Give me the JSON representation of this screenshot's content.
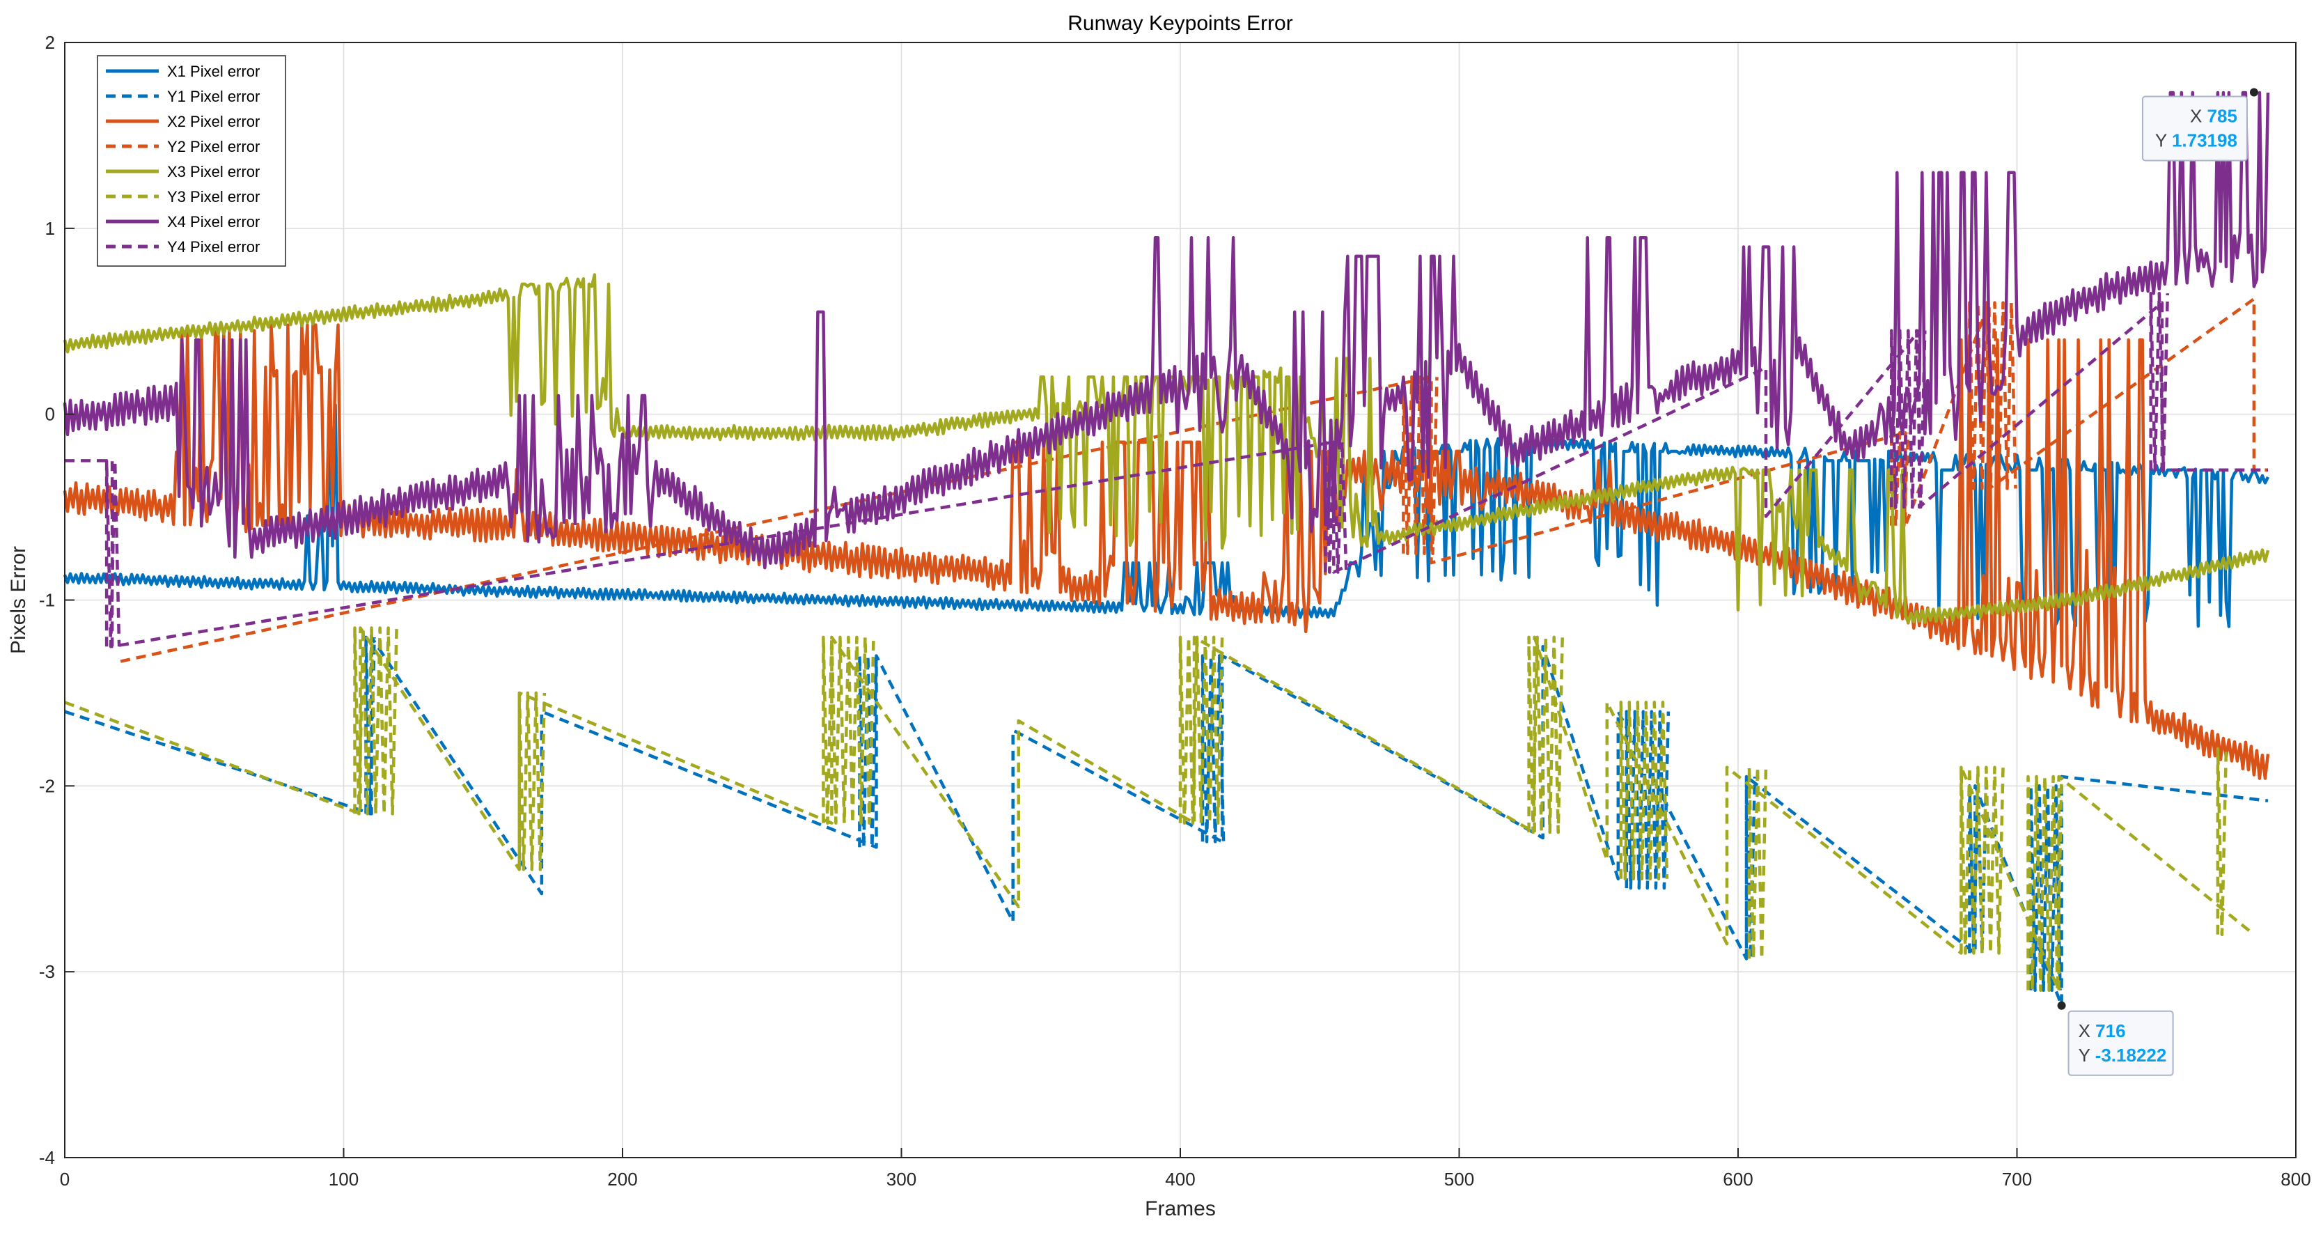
{
  "chart_data": {
    "type": "line",
    "title": "Runway Keypoints Error",
    "xlabel": "Frames",
    "ylabel": "Pixels Error",
    "xlim": [
      0,
      800
    ],
    "ylim": [
      -4,
      2
    ],
    "xticks": [
      0,
      100,
      200,
      300,
      400,
      500,
      600,
      700,
      800
    ],
    "yticks": [
      -4,
      -3,
      -2,
      -1,
      0,
      1,
      2
    ],
    "grid": true,
    "legend_location": "top-left",
    "series": [
      {
        "name": "X1 Pixel error",
        "color": "#0072BD",
        "style": "solid",
        "base": [
          [
            0,
            -0.88
          ],
          [
            200,
            -0.97
          ],
          [
            400,
            -1.05
          ],
          [
            455,
            -1.07
          ],
          [
            480,
            -0.2
          ],
          [
            520,
            -0.15
          ],
          [
            600,
            -0.2
          ],
          [
            700,
            -0.25
          ],
          [
            790,
            -0.35
          ]
        ],
        "wiggle": 0.03,
        "spikes": [
          [
            86,
            92,
            -0.85,
            0.05
          ],
          [
            93,
            98,
            -0.85,
            0.05
          ],
          [
            380,
            420,
            -1.05,
            -0.8
          ],
          [
            460,
            525,
            -1.05,
            -0.2
          ],
          [
            545,
            560,
            -1.0,
            -0.2
          ],
          [
            565,
            580,
            -1.2,
            -0.2
          ],
          [
            620,
            655,
            -1.1,
            -0.25
          ],
          [
            672,
            690,
            -1.3,
            -0.3
          ],
          [
            695,
            785,
            -1.3,
            -0.3
          ]
        ]
      },
      {
        "name": "Y1 Pixel error",
        "color": "#0072BD",
        "style": "dashed",
        "segments": [
          [
            [
              0,
              -1.6
            ],
            [
              110,
              -2.15
            ]
          ],
          [
            [
              110,
              -1.2
            ],
            [
              171,
              -2.58
            ]
          ],
          [
            [
              171,
              -1.6
            ],
            [
              291,
              -2.33
            ]
          ],
          [
            [
              291,
              -1.3
            ],
            [
              340,
              -2.73
            ]
          ],
          [
            [
              340,
              -1.7
            ],
            [
              415,
              -2.3
            ]
          ],
          [
            [
              415,
              -1.3
            ],
            [
              530,
              -2.28
            ]
          ],
          [
            [
              530,
              -1.25
            ],
            [
              557,
              -2.5
            ]
          ],
          [
            [
              557,
              -1.6
            ],
            [
              603,
              -2.93
            ]
          ],
          [
            [
              603,
              -1.95
            ],
            [
              685,
              -2.9
            ]
          ],
          [
            [
              685,
              -2.0
            ],
            [
              716,
              -3.18
            ]
          ],
          [
            [
              716,
              -1.95
            ],
            [
              790,
              -2.08
            ]
          ]
        ],
        "flicker": [
          [
            108,
            112,
            -2.15,
            -1.2
          ],
          [
            285,
            292,
            -2.33,
            -1.3
          ],
          [
            408,
            416,
            -2.3,
            -1.3
          ],
          [
            560,
            575,
            -2.55,
            -1.6
          ],
          [
            603,
            607,
            -2.93,
            -1.95
          ],
          [
            683,
            690,
            -2.9,
            -2.0
          ],
          [
            705,
            716,
            -3.1,
            -2.0
          ]
        ]
      },
      {
        "name": "X2 Pixel error",
        "color": "#D95319",
        "style": "solid",
        "base": [
          [
            0,
            -0.45
          ],
          [
            65,
            -0.55
          ],
          [
            160,
            -0.6
          ],
          [
            330,
            -0.85
          ],
          [
            450,
            -1.1
          ],
          [
            460,
            -0.3
          ],
          [
            520,
            -0.4
          ],
          [
            600,
            -0.7
          ],
          [
            700,
            -1.3
          ],
          [
            790,
            -1.9
          ]
        ],
        "wiggle": 0.09,
        "spikes": [
          [
            40,
            68,
            -0.5,
            0.45
          ],
          [
            70,
            103,
            0.15,
            0.48
          ],
          [
            160,
            164,
            -0.6,
            0.3
          ],
          [
            340,
            360,
            -0.9,
            -0.15
          ],
          [
            370,
            410,
            -1.0,
            -0.15
          ],
          [
            430,
            455,
            -1.2,
            -0.2
          ],
          [
            465,
            510,
            -0.6,
            -0.2
          ],
          [
            545,
            555,
            -0.6,
            -0.25
          ],
          [
            680,
            745,
            -1.3,
            0.4
          ]
        ]
      },
      {
        "name": "Y2 Pixel error",
        "color": "#D95319",
        "style": "dashed",
        "segments": [
          [
            [
              20,
              -1.33
            ],
            [
              490,
              0.2
            ]
          ],
          [
            [
              490,
              -0.8
            ],
            [
              660,
              -0.1
            ]
          ],
          [
            [
              660,
              -0.6
            ],
            [
              690,
              0.6
            ]
          ],
          [
            [
              690,
              -0.4
            ],
            [
              785,
              0.62
            ]
          ],
          [
            [
              785,
              -0.3
            ],
            [
              790,
              -0.3
            ]
          ]
        ],
        "flicker": [
          [
            480,
            492,
            -0.75,
            0.2
          ],
          [
            655,
            662,
            -0.6,
            -0.1
          ],
          [
            683,
            700,
            -0.4,
            0.6
          ]
        ]
      },
      {
        "name": "X3 Pixel error",
        "color": "#A2A91E",
        "style": "solid",
        "base": [
          [
            0,
            0.37
          ],
          [
            150,
            0.62
          ],
          [
            190,
            0.72
          ],
          [
            195,
            -0.1
          ],
          [
            300,
            -0.1
          ],
          [
            440,
            0.22
          ],
          [
            460,
            -0.7
          ],
          [
            600,
            -0.3
          ],
          [
            660,
            -1.1
          ],
          [
            720,
            -1.0
          ],
          [
            790,
            -0.75
          ]
        ],
        "wiggle": 0.04,
        "spikes": [
          [
            160,
            200,
            -0.25,
            0.7
          ],
          [
            350,
            445,
            -0.9,
            0.2
          ],
          [
            450,
            470,
            -0.8,
            0.3
          ],
          [
            600,
            660,
            -1.2,
            -0.3
          ]
        ]
      },
      {
        "name": "Y3 Pixel error",
        "color": "#A2A91E",
        "style": "dashed",
        "segments": [
          [
            [
              0,
              -1.55
            ],
            [
              106,
              -2.15
            ]
          ],
          [
            [
              106,
              -1.15
            ],
            [
              163,
              -2.45
            ]
          ],
          [
            [
              163,
              -1.5
            ],
            [
              275,
              -2.2
            ]
          ],
          [
            [
              275,
              -1.2
            ],
            [
              342,
              -2.65
            ]
          ],
          [
            [
              342,
              -1.65
            ],
            [
              405,
              -2.2
            ]
          ],
          [
            [
              405,
              -1.2
            ],
            [
              527,
              -2.25
            ]
          ],
          [
            [
              527,
              -1.2
            ],
            [
              553,
              -2.4
            ]
          ],
          [
            [
              553,
              -1.55
            ],
            [
              596,
              -2.85
            ]
          ],
          [
            [
              596,
              -1.9
            ],
            [
              680,
              -2.9
            ]
          ],
          [
            [
              680,
              -1.9
            ],
            [
              715,
              -3.1
            ]
          ],
          [
            [
              715,
              -1.95
            ],
            [
              785,
              -2.8
            ]
          ]
        ],
        "flicker": [
          [
            104,
            120,
            -2.15,
            -1.15
          ],
          [
            163,
            172,
            -2.45,
            -1.5
          ],
          [
            272,
            290,
            -2.2,
            -1.2
          ],
          [
            400,
            415,
            -2.2,
            -1.2
          ],
          [
            525,
            538,
            -2.25,
            -1.2
          ],
          [
            558,
            575,
            -2.5,
            -1.55
          ],
          [
            604,
            610,
            -2.93,
            -1.9
          ],
          [
            680,
            695,
            -2.9,
            -1.9
          ],
          [
            704,
            716,
            -3.1,
            -1.95
          ],
          [
            772,
            776,
            -2.8,
            -1.8
          ]
        ]
      },
      {
        "name": "X4 Pixel error",
        "color": "#7E2F8E",
        "style": "solid",
        "base": [
          [
            0,
            -0.02
          ],
          [
            45,
            0.08
          ],
          [
            60,
            -0.7
          ],
          [
            200,
            -0.2
          ],
          [
            250,
            -0.75
          ],
          [
            420,
            0.3
          ],
          [
            440,
            -0.25
          ],
          [
            500,
            0.3
          ],
          [
            520,
            -0.2
          ],
          [
            620,
            0.4
          ],
          [
            640,
            -0.2
          ],
          [
            720,
            0.6
          ],
          [
            790,
            0.95
          ]
        ],
        "wiggle": 0.1,
        "spikes": [
          [
            40,
            65,
            -0.8,
            0.4
          ],
          [
            160,
            210,
            -0.85,
            0.1
          ],
          [
            270,
            280,
            -0.9,
            0.55
          ],
          [
            390,
            420,
            -0.3,
            0.95
          ],
          [
            440,
            460,
            -0.9,
            0.55
          ],
          [
            460,
            500,
            -0.6,
            0.85
          ],
          [
            545,
            575,
            -0.2,
            0.95
          ],
          [
            600,
            620,
            -0.4,
            0.9
          ],
          [
            650,
            700,
            -0.4,
            1.3
          ],
          [
            755,
            790,
            0.5,
            1.73
          ]
        ]
      },
      {
        "name": "Y4 Pixel error",
        "color": "#7E2F8E",
        "style": "dashed",
        "segments": [
          [
            [
              0,
              -0.25
            ],
            [
              17,
              -0.25
            ]
          ],
          [
            [
              17,
              -1.25
            ],
            [
              455,
              -0.15
            ]
          ],
          [
            [
              455,
              -0.85
            ],
            [
              610,
              0.25
            ]
          ],
          [
            [
              610,
              -0.55
            ],
            [
              665,
              0.45
            ]
          ],
          [
            [
              665,
              -0.5
            ],
            [
              752,
              0.6
            ]
          ],
          [
            [
              752,
              -0.3
            ],
            [
              790,
              -0.3
            ]
          ]
        ],
        "flicker": [
          [
            15,
            20,
            -1.25,
            -0.25
          ],
          [
            452,
            460,
            -0.85,
            -0.15
          ],
          [
            655,
            668,
            -0.5,
            0.45
          ],
          [
            748,
            755,
            -0.3,
            0.65
          ]
        ]
      }
    ],
    "datatips": [
      {
        "x": 785,
        "y": 1.73198,
        "x_text": "785",
        "y_text": "1.73198",
        "placement": "lower-left"
      },
      {
        "x": 716,
        "y": -3.18222,
        "x_text": "716",
        "y_text": "-3.18222",
        "placement": "lower-right"
      }
    ],
    "datatip_x_label": "X",
    "datatip_y_label": "Y"
  }
}
